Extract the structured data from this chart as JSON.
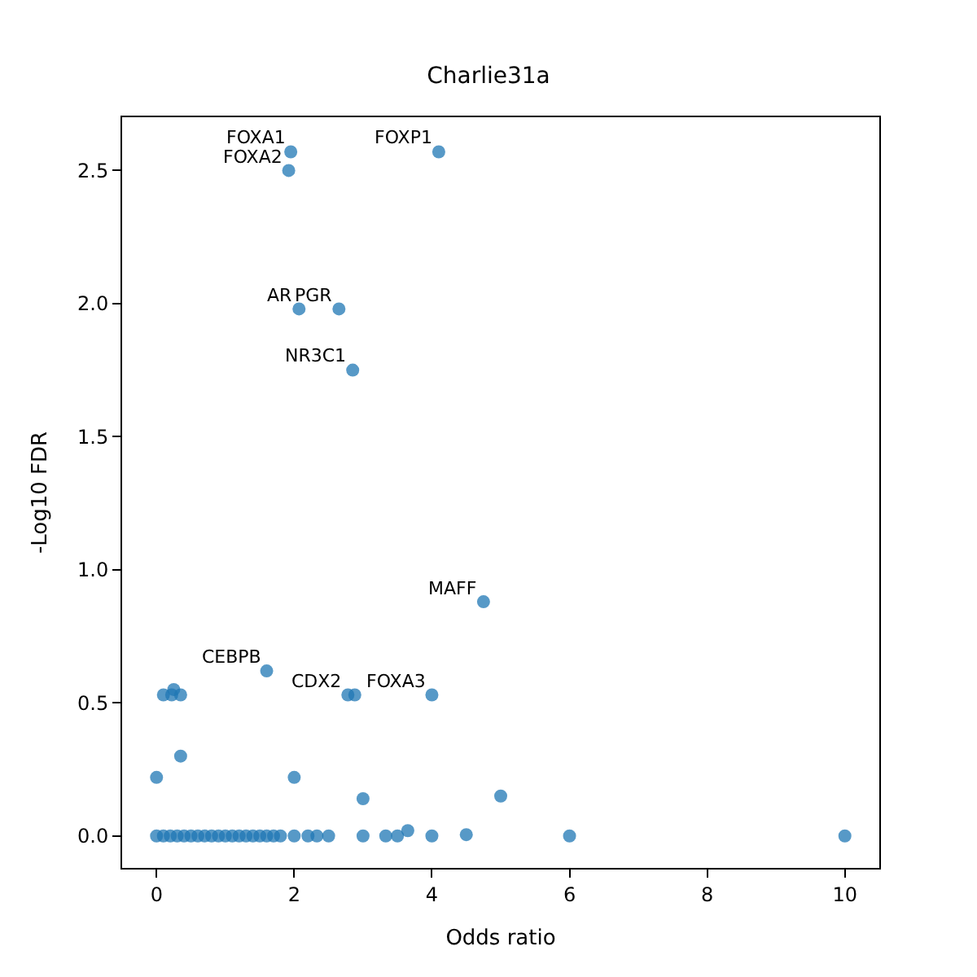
{
  "chart_data": {
    "type": "scatter",
    "title": "Charlie31a",
    "xlabel": "Odds ratio",
    "ylabel": "-Log10 FDR",
    "xlim": [
      -0.5,
      10.5
    ],
    "xticks": [
      0,
      2,
      4,
      6,
      8,
      10
    ],
    "ylim": [
      -0.12,
      2.7
    ],
    "yticks": [
      {
        "value": 0,
        "label": "0.0"
      },
      {
        "value": 0.5,
        "label": "0.5"
      },
      {
        "value": 1,
        "label": "1.0"
      },
      {
        "value": 1.5,
        "label": "1.5"
      },
      {
        "value": 2,
        "label": "2.0"
      },
      {
        "value": 2.5,
        "label": "2.5"
      }
    ],
    "marker": "circle",
    "series": [
      {
        "color": "#1f77b4",
        "x": [
          1.95,
          1.92,
          4.1,
          2.07,
          2.65,
          2.85,
          4.75,
          1.6,
          2.78,
          2.88,
          4.0,
          0.1,
          0.25,
          0.22,
          0.35,
          0.35,
          0,
          2.0,
          3.0,
          5.0,
          3.65,
          4.5,
          0,
          0.1,
          0.2,
          0.3,
          0.4,
          0.5,
          0.6,
          0.7,
          0.8,
          0.9,
          1.0,
          1.1,
          1.2,
          1.3,
          1.4,
          1.5,
          1.6,
          1.7,
          1.8,
          2.0,
          2.2,
          2.33,
          2.5,
          3.0,
          3.33,
          3.5,
          4.0,
          6.0,
          10.0
        ],
        "values": [
          2.57,
          2.5,
          2.57,
          1.98,
          1.98,
          1.75,
          0.88,
          0.62,
          0.53,
          0.53,
          0.53,
          0.53,
          0.55,
          0.53,
          0.53,
          0.3,
          0.22,
          0.22,
          0.14,
          0.15,
          0.02,
          0.005,
          0,
          0,
          0,
          0,
          0,
          0,
          0,
          0,
          0,
          0,
          0,
          0,
          0,
          0,
          0,
          0,
          0,
          0,
          0,
          0,
          0,
          0,
          0,
          0,
          0,
          0,
          0,
          0,
          0
        ]
      }
    ],
    "annotations": [
      {
        "text": "FOXA1",
        "x": 1.95,
        "y": 2.57
      },
      {
        "text": "FOXA2",
        "x": 1.92,
        "y": 2.5
      },
      {
        "text": "FOXP1",
        "x": 4.1,
        "y": 2.57
      },
      {
        "text": "AR",
        "x": 2.07,
        "y": 1.98
      },
      {
        "text": "PGR",
        "x": 2.65,
        "y": 1.98
      },
      {
        "text": "NR3C1",
        "x": 2.85,
        "y": 1.75
      },
      {
        "text": "MAFF",
        "x": 4.75,
        "y": 0.88
      },
      {
        "text": "CEBPB",
        "x": 1.6,
        "y": 0.62
      },
      {
        "text": "CDX2",
        "x": 2.78,
        "y": 0.53
      },
      {
        "text": "FOXA3",
        "x": 4.0,
        "y": 0.53
      }
    ]
  }
}
